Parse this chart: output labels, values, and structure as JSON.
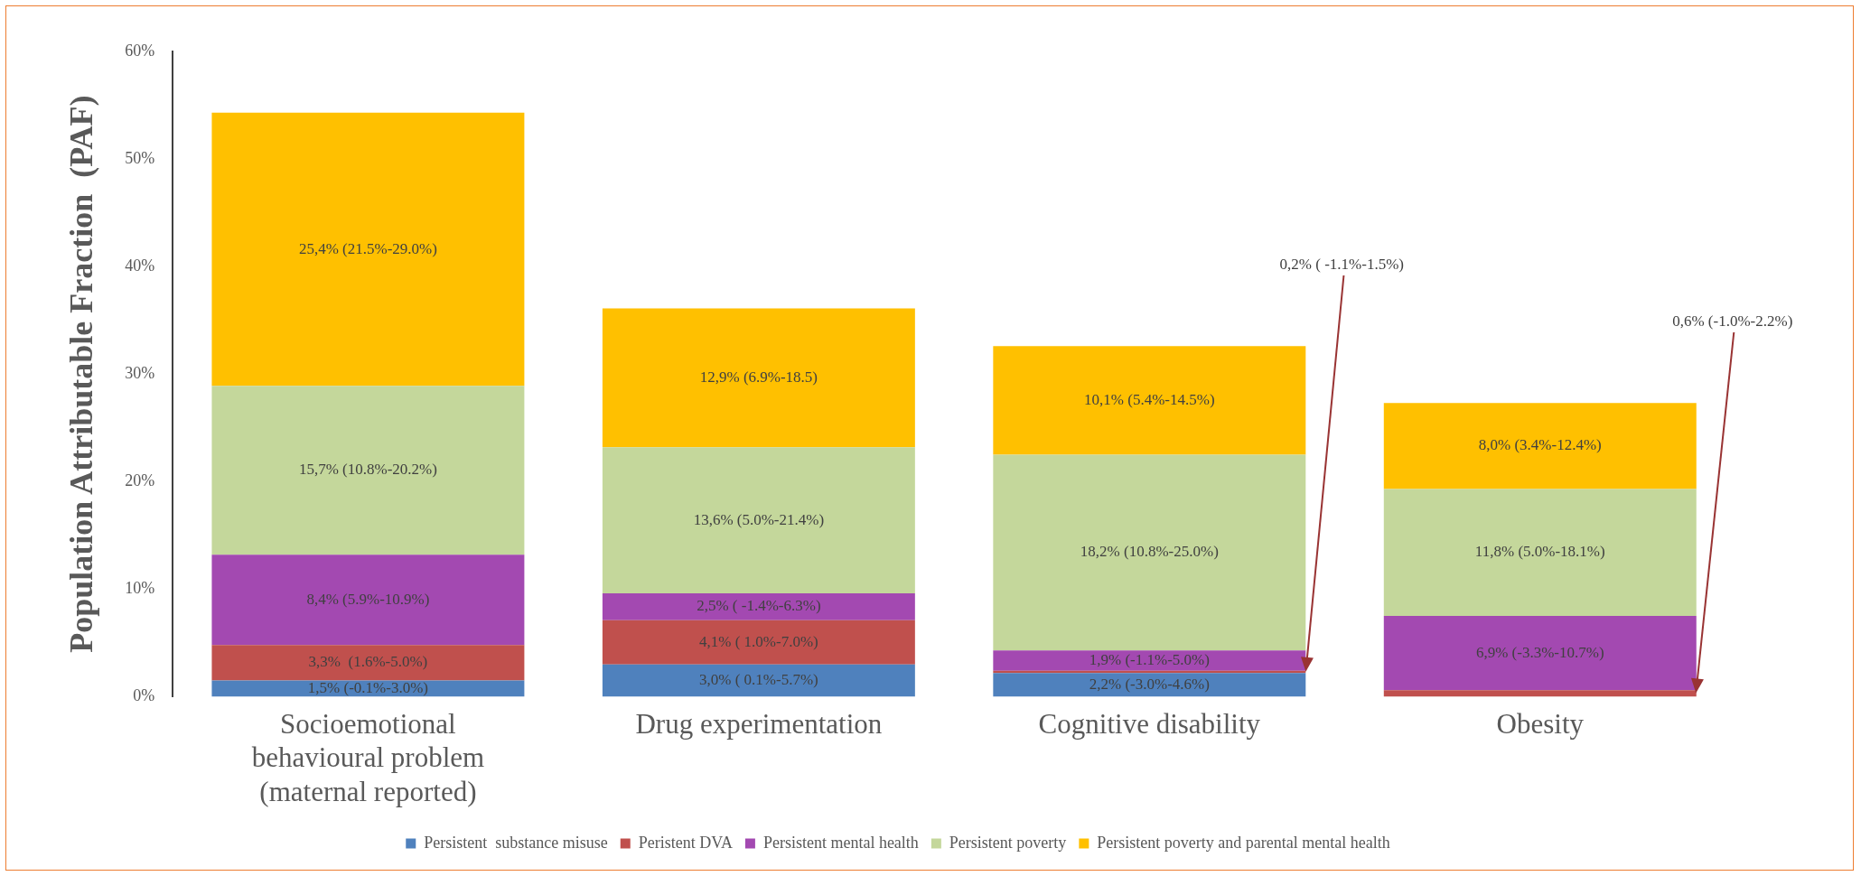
{
  "chart_data": {
    "type": "bar",
    "stacked": true,
    "ylabel": "Population Attributable Fraction  (PAF)",
    "categories": [
      "Socioemotional behavioural problem (maternal reported)",
      "Drug experimentation",
      "Cognitive disability",
      "Obesity"
    ],
    "ylim": [
      0,
      60
    ],
    "yticks": [
      {
        "value": 0,
        "label": "0%"
      },
      {
        "value": 10,
        "label": "10%"
      },
      {
        "value": 20,
        "label": "20%"
      },
      {
        "value": 30,
        "label": "30%"
      },
      {
        "value": 40,
        "label": "40%"
      },
      {
        "value": 50,
        "label": "50%"
      },
      {
        "value": 60,
        "label": "60%"
      }
    ],
    "grid": false,
    "legend": "bottom",
    "series": [
      {
        "name": "Persistent  substance misuse",
        "color": "#4f81bd",
        "values": [
          1.5,
          3.0,
          2.2,
          null
        ],
        "value_labels": [
          "1,5% (-0.1%-3.0%)",
          "3,0% ( 0.1%-5.7%)",
          "2,2% (-3.0%-4.6%)",
          null
        ]
      },
      {
        "name": "Peristent DVA",
        "color": "#c0504d",
        "values": [
          3.3,
          4.1,
          0.2,
          0.6
        ],
        "value_labels": [
          "3,3%  (1.6%-5.0%)",
          "4,1% ( 1.0%-7.0%)",
          "0,2% ( -1.1%-1.5%)",
          "0,6% (-1.0%-2.2%)"
        ]
      },
      {
        "name": "Persistent mental health",
        "color": "#a349b1",
        "values": [
          8.4,
          2.5,
          1.9,
          6.9
        ],
        "value_labels": [
          "8,4% (5.9%-10.9%)",
          "2,5% ( -1.4%-6.3%)",
          "1,9% (-1.1%-5.0%)",
          "6,9% (-3.3%-10.7%)"
        ]
      },
      {
        "name": "Persistent poverty",
        "color": "#c4d79b",
        "values": [
          15.7,
          13.6,
          18.2,
          11.8
        ],
        "value_labels": [
          "15,7% (10.8%-20.2%)",
          "13,6% (5.0%-21.4%)",
          "18,2% (10.8%-25.0%)",
          "11,8% (5.0%-18.1%)"
        ]
      },
      {
        "name": "Persistent poverty and parental mental health",
        "color": "#ffc000",
        "values": [
          25.4,
          12.9,
          10.1,
          8.0
        ],
        "value_labels": [
          "25,4% (21.5%-29.0%)",
          "12,9% (6.9%-18.5)",
          "10,1% (5.4%-14.5%)",
          "8,0% (3.4%-12.4%)"
        ]
      }
    ]
  }
}
